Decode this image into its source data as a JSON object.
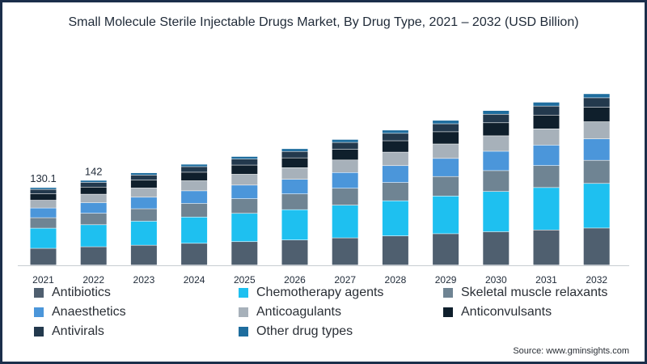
{
  "chart_data": {
    "type": "bar",
    "stacked": true,
    "title": "Small Molecule Sterile Injectable Drugs Market, By Drug Type, 2021 – 2032 (USD Billion)",
    "xlabel": "",
    "ylabel": "",
    "categories": [
      "2021",
      "2022",
      "2023",
      "2024",
      "2025",
      "2026",
      "2027",
      "2028",
      "2029",
      "2030",
      "2031",
      "2032"
    ],
    "ylim": [
      0,
      300
    ],
    "grid": false,
    "legend_position": "bottom",
    "data_labels": {
      "2021": "130.1",
      "2022": "142"
    },
    "series": [
      {
        "name": "Antibiotics",
        "color": "#4f5f6f",
        "values": [
          28,
          30.7,
          33.3,
          36.5,
          39.3,
          42.1,
          45.6,
          48.9,
          52.6,
          55.9,
          58.9,
          62.1
        ]
      },
      {
        "name": "Chemotherapy agents",
        "color": "#1ec0f0",
        "values": [
          33.9,
          37,
          40.3,
          44.1,
          47.5,
          50.9,
          54.9,
          59,
          63.3,
          67.6,
          71.2,
          74.9
        ]
      },
      {
        "name": "Skeletal muscle relaxants",
        "color": "#6f8493",
        "values": [
          17.6,
          19.2,
          20.9,
          22.8,
          24.6,
          26.4,
          28.4,
          30.6,
          32.7,
          35,
          36.9,
          38.8
        ]
      },
      {
        "name": "Anaesthetics",
        "color": "#4b96da",
        "values": [
          16.3,
          17.8,
          19.4,
          21.2,
          22.8,
          24.5,
          26.4,
          28.4,
          30.4,
          32.5,
          34.3,
          36
        ]
      },
      {
        "name": "Anticoagulants",
        "color": "#a7b1ba",
        "values": [
          13,
          14.2,
          15.5,
          16.9,
          18.2,
          19.5,
          21,
          22.6,
          24.2,
          25.9,
          27.3,
          28.7
        ]
      },
      {
        "name": "Anticonvulsants",
        "color": "#0f1f2c",
        "values": [
          11,
          12,
          13.1,
          14.3,
          15.4,
          16.5,
          17.8,
          19.1,
          20.5,
          21.9,
          23.1,
          24.3
        ]
      },
      {
        "name": "Antivirals",
        "color": "#23394d",
        "values": [
          7.2,
          7.9,
          8.6,
          9.4,
          10.1,
          10.8,
          11.7,
          12.5,
          13.4,
          14.3,
          15.1,
          15.9
        ]
      },
      {
        "name": "Other drug types",
        "color": "#1e6d9e",
        "values": [
          3.1,
          3.4,
          3.7,
          4,
          4.3,
          4.6,
          5,
          5.4,
          5.8,
          6.2,
          6.5,
          6.8
        ]
      }
    ]
  },
  "source": "Source: www.gminsights.com"
}
